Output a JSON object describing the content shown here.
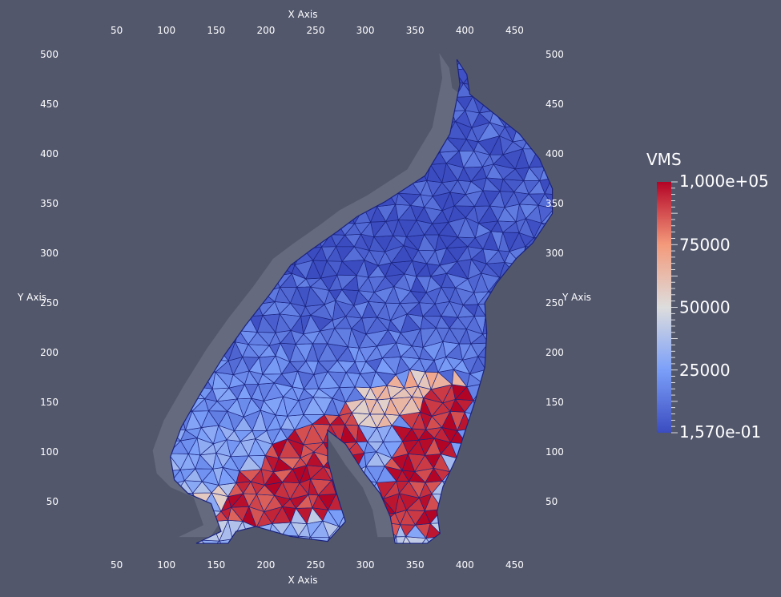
{
  "chart_data": {
    "type": "mesh",
    "axes": {
      "x": {
        "label": "X Axis",
        "ticks": [
          50,
          100,
          150,
          200,
          250,
          300,
          350,
          400,
          450
        ],
        "range": [
          0,
          470
        ]
      },
      "y": {
        "label": "Y Axis",
        "ticks": [
          50,
          100,
          150,
          200,
          250,
          300,
          350,
          400,
          450,
          500
        ],
        "range": [
          0,
          510
        ]
      }
    },
    "colorbar": {
      "title": "VMS",
      "min_label": "1,570e-01",
      "max_label": "1,000e+05",
      "labels": [
        "75000",
        "50000",
        "25000"
      ],
      "label_values": [
        75000,
        50000,
        25000
      ],
      "min": 0.157,
      "max": 100000,
      "colors": [
        "#3b4cc0",
        "#dddddd",
        "#b40426"
      ]
    },
    "mesh_color": "#1a237e",
    "shadow_color": "#656a7e",
    "outline": [
      [
        130,
        8
      ],
      [
        155,
        20
      ],
      [
        145,
        48
      ],
      [
        122,
        58
      ],
      [
        108,
        72
      ],
      [
        104,
        95
      ],
      [
        115,
        125
      ],
      [
        135,
        160
      ],
      [
        158,
        197
      ],
      [
        180,
        228
      ],
      [
        205,
        260
      ],
      [
        225,
        288
      ],
      [
        245,
        303
      ],
      [
        272,
        322
      ],
      [
        292,
        337
      ],
      [
        320,
        352
      ],
      [
        360,
        378
      ],
      [
        385,
        420
      ],
      [
        395,
        470
      ],
      [
        392,
        495
      ],
      [
        402,
        480
      ],
      [
        405,
        460
      ],
      [
        430,
        440
      ],
      [
        455,
        420
      ],
      [
        475,
        395
      ],
      [
        488,
        365
      ],
      [
        488,
        340
      ],
      [
        468,
        310
      ],
      [
        452,
        295
      ],
      [
        432,
        270
      ],
      [
        420,
        250
      ],
      [
        422,
        220
      ],
      [
        420,
        185
      ],
      [
        410,
        150
      ],
      [
        400,
        120
      ],
      [
        392,
        95
      ],
      [
        378,
        65
      ],
      [
        372,
        40
      ],
      [
        375,
        18
      ],
      [
        362,
        8
      ],
      [
        330,
        8
      ],
      [
        325,
        35
      ],
      [
        315,
        58
      ],
      [
        298,
        80
      ],
      [
        280,
        108
      ],
      [
        262,
        122
      ],
      [
        262,
        92
      ],
      [
        270,
        62
      ],
      [
        280,
        30
      ],
      [
        262,
        10
      ],
      [
        225,
        15
      ],
      [
        190,
        25
      ],
      [
        170,
        20
      ],
      [
        162,
        8
      ]
    ],
    "hot_regions": [
      {
        "points": [
          [
            140,
            28
          ],
          [
            200,
            28
          ],
          [
            268,
            40
          ],
          [
            290,
            78
          ],
          [
            300,
            118
          ],
          [
            285,
            150
          ],
          [
            240,
            125
          ],
          [
            200,
            95
          ],
          [
            170,
            70
          ],
          [
            160,
            50
          ]
        ],
        "value": 92000
      },
      {
        "points": [
          [
            300,
            20
          ],
          [
            370,
            18
          ],
          [
            375,
            70
          ],
          [
            385,
            95
          ],
          [
            400,
            125
          ],
          [
            408,
            160
          ],
          [
            380,
            168
          ],
          [
            348,
            140
          ],
          [
            330,
            110
          ],
          [
            320,
            70
          ]
        ],
        "value": 95000
      }
    ],
    "warm_regions": [
      {
        "points": [
          [
            120,
            55
          ],
          [
            160,
            45
          ],
          [
            200,
            95
          ],
          [
            260,
            130
          ],
          [
            300,
            165
          ],
          [
            330,
            170
          ],
          [
            360,
            180
          ],
          [
            395,
            175
          ],
          [
            408,
            165
          ],
          [
            405,
            135
          ],
          [
            380,
            140
          ],
          [
            345,
            140
          ],
          [
            300,
            120
          ],
          [
            255,
            95
          ],
          [
            205,
            70
          ]
        ],
        "value": 62000
      }
    ]
  }
}
